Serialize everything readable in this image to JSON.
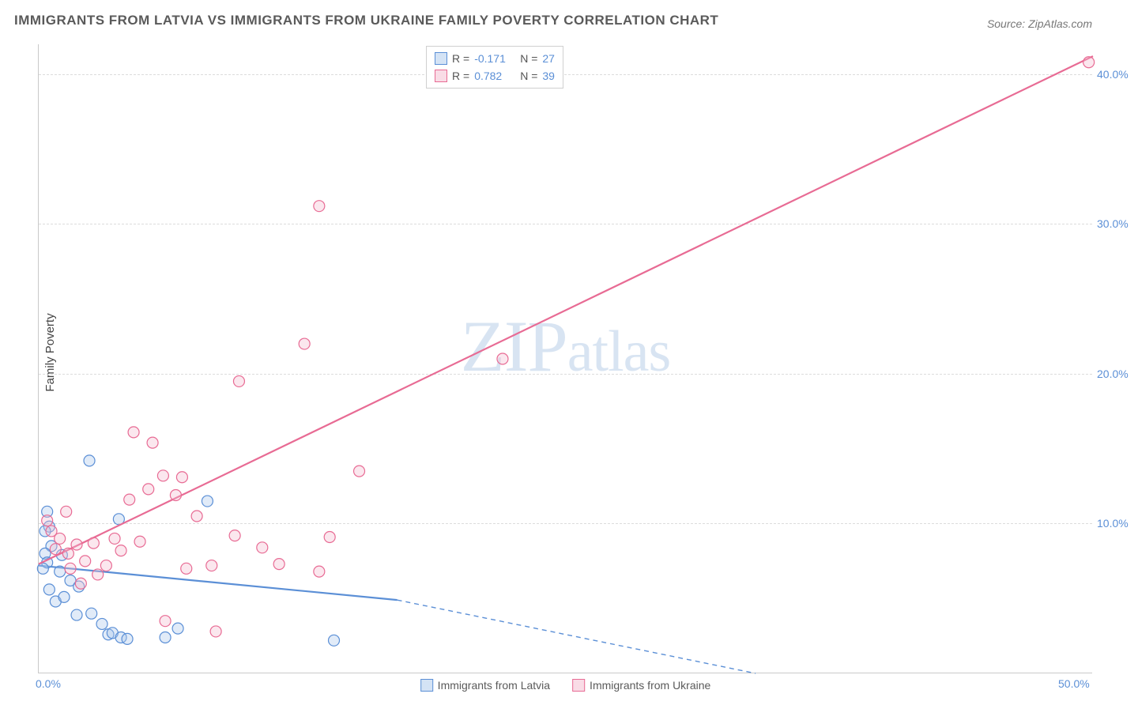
{
  "title": "IMMIGRANTS FROM LATVIA VS IMMIGRANTS FROM UKRAINE FAMILY POVERTY CORRELATION CHART",
  "source": "Source: ZipAtlas.com",
  "y_axis_title": "Family Poverty",
  "watermark": {
    "pre": "ZIP",
    "post": "atlas"
  },
  "chart": {
    "type": "scatter-with-regression",
    "xlim": [
      0,
      50
    ],
    "ylim": [
      0,
      42
    ],
    "x_ticks": [
      {
        "value": 0,
        "label": "0.0%"
      },
      {
        "value": 50,
        "label": "50.0%"
      }
    ],
    "y_ticks": [
      {
        "value": 10,
        "label": "10.0%"
      },
      {
        "value": 20,
        "label": "20.0%"
      },
      {
        "value": 30,
        "label": "30.0%"
      },
      {
        "value": 40,
        "label": "40.0%"
      }
    ],
    "background_color": "#ffffff",
    "grid_color": "#dcdcdc",
    "marker_radius": 7,
    "marker_fill_opacity": 0.35,
    "marker_stroke_width": 1.2,
    "line_width": 2.2,
    "series": [
      {
        "id": "latvia",
        "label": "Immigrants from Latvia",
        "color_stroke": "#5b8fd6",
        "color_fill": "#a9c7ec",
        "R": "-0.171",
        "N": "27",
        "regression": {
          "solid": {
            "x1": 0,
            "y1": 7.2,
            "x2": 17,
            "y2": 4.9
          },
          "dashed": {
            "x1": 17,
            "y1": 4.9,
            "x2": 34,
            "y2": 0
          }
        },
        "points": [
          [
            0.4,
            10.8
          ],
          [
            0.5,
            9.8
          ],
          [
            0.3,
            9.5
          ],
          [
            0.6,
            8.5
          ],
          [
            0.3,
            8.0
          ],
          [
            0.4,
            7.4
          ],
          [
            0.2,
            7.0
          ],
          [
            1.0,
            6.8
          ],
          [
            0.8,
            4.8
          ],
          [
            1.2,
            5.1
          ],
          [
            1.5,
            6.2
          ],
          [
            1.9,
            5.8
          ],
          [
            2.5,
            4.0
          ],
          [
            3.0,
            3.3
          ],
          [
            3.3,
            2.6
          ],
          [
            3.5,
            2.7
          ],
          [
            3.9,
            2.4
          ],
          [
            4.2,
            2.3
          ],
          [
            2.4,
            14.2
          ],
          [
            3.8,
            10.3
          ],
          [
            6.0,
            2.4
          ],
          [
            6.6,
            3.0
          ],
          [
            8.0,
            11.5
          ],
          [
            14.0,
            2.2
          ],
          [
            1.1,
            7.9
          ],
          [
            0.5,
            5.6
          ],
          [
            1.8,
            3.9
          ]
        ]
      },
      {
        "id": "ukraine",
        "label": "Immigrants from Ukraine",
        "color_stroke": "#e86b94",
        "color_fill": "#f4b9cd",
        "R": "0.782",
        "N": "39",
        "regression": {
          "solid": {
            "x1": 0,
            "y1": 7.3,
            "x2": 50,
            "y2": 41.2
          },
          "dashed": null
        },
        "points": [
          [
            0.4,
            10.2
          ],
          [
            0.6,
            9.5
          ],
          [
            0.8,
            8.3
          ],
          [
            1.0,
            9.0
          ],
          [
            1.4,
            8.0
          ],
          [
            1.5,
            7.0
          ],
          [
            1.8,
            8.6
          ],
          [
            2.2,
            7.5
          ],
          [
            2.6,
            8.7
          ],
          [
            2.8,
            6.6
          ],
          [
            3.2,
            7.2
          ],
          [
            3.6,
            9.0
          ],
          [
            3.9,
            8.2
          ],
          [
            4.3,
            11.6
          ],
          [
            4.5,
            16.1
          ],
          [
            5.2,
            12.3
          ],
          [
            5.4,
            15.4
          ],
          [
            5.9,
            13.2
          ],
          [
            6.5,
            11.9
          ],
          [
            6.8,
            13.1
          ],
          [
            7.0,
            7.0
          ],
          [
            7.5,
            10.5
          ],
          [
            8.2,
            7.2
          ],
          [
            8.4,
            2.8
          ],
          [
            9.3,
            9.2
          ],
          [
            9.5,
            19.5
          ],
          [
            10.6,
            8.4
          ],
          [
            11.4,
            7.3
          ],
          [
            12.6,
            22.0
          ],
          [
            13.3,
            31.2
          ],
          [
            13.3,
            6.8
          ],
          [
            13.8,
            9.1
          ],
          [
            15.2,
            13.5
          ],
          [
            22.0,
            21.0
          ],
          [
            49.8,
            40.8
          ],
          [
            1.3,
            10.8
          ],
          [
            2.0,
            6.0
          ],
          [
            4.8,
            8.8
          ],
          [
            6.0,
            3.5
          ]
        ]
      }
    ]
  },
  "legend_top": {
    "R_label": "R =",
    "N_label": "N ="
  }
}
